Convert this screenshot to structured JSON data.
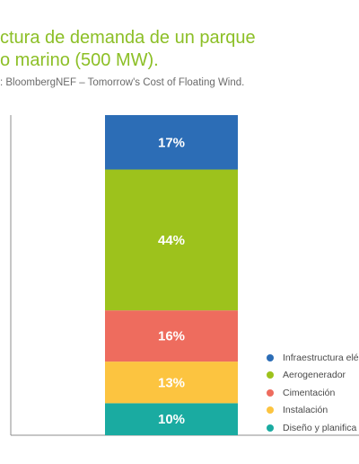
{
  "header": {
    "title_line1": "ctura de demanda de un parque",
    "title_line2": "o marino (500 MW).",
    "source": ": BloombergNEF – Tomorrow's Cost of Floating Wind."
  },
  "chart_data": {
    "type": "bar",
    "stacked": true,
    "orientation": "vertical",
    "unit": "%",
    "ylim": [
      0,
      100
    ],
    "grid": false,
    "legend_position": "right",
    "segments_bottom_to_top": [
      {
        "name": "Diseño y planifica",
        "value": 10,
        "label": "10%",
        "color": "#1aaba1"
      },
      {
        "name": "Instalación",
        "value": 13,
        "label": "13%",
        "color": "#fcc440"
      },
      {
        "name": "Cimentación",
        "value": 16,
        "label": "16%",
        "color": "#ee6c5e"
      },
      {
        "name": "Aerogenerador",
        "value": 44,
        "label": "44%",
        "color": "#9dc21c"
      },
      {
        "name": "Infraestructura elé",
        "value": 17,
        "label": "17%",
        "color": "#2c6db6"
      }
    ],
    "legend": [
      {
        "label": "Infraestructura elé",
        "color": "#2c6db6"
      },
      {
        "label": "Aerogenerador",
        "color": "#9dc21c"
      },
      {
        "label": "Cimentación",
        "color": "#ee6c5e"
      },
      {
        "label": "Instalación",
        "color": "#fcc440"
      },
      {
        "label": "Diseño y planifica",
        "color": "#1aaba1"
      }
    ]
  }
}
